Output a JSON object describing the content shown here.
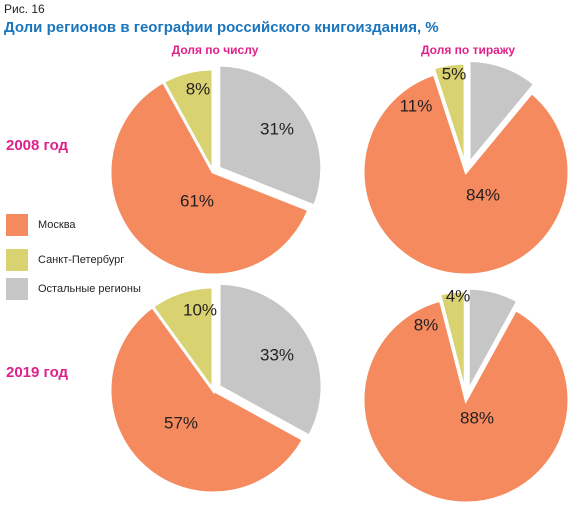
{
  "figure": {
    "label": "Рис. 16",
    "title": "Доли регионов в географии российского книгоиздания, %"
  },
  "columns": [
    "Доля по числу",
    "Доля по тиражу"
  ],
  "rows": [
    "2008 год",
    "2019 год"
  ],
  "legend": [
    {
      "label": "Москва",
      "color": "#f48a5e"
    },
    {
      "label": "Санкт-Петербург",
      "color": "#d9d271"
    },
    {
      "label": "Остальные регионы",
      "color": "#c6c6c7"
    }
  ],
  "chart_data": [
    {
      "type": "pie",
      "title": "Доля по числу",
      "subtitle": "2008 год",
      "categories": [
        "Москва",
        "Санкт-Петербург",
        "Остальные регионы"
      ],
      "values": [
        61,
        8,
        31
      ],
      "labels": [
        "61%",
        "8%",
        "31%"
      ],
      "colors": [
        "#f48a5e",
        "#d9d271",
        "#c6c6c7"
      ]
    },
    {
      "type": "pie",
      "title": "Доля по тиражу",
      "subtitle": "2008 год",
      "categories": [
        "Москва",
        "Санкт-Петербург",
        "Остальные регионы"
      ],
      "values": [
        84,
        5,
        11
      ],
      "labels": [
        "84%",
        "5%",
        "11%"
      ],
      "colors": [
        "#f48a5e",
        "#d9d271",
        "#c6c6c7"
      ]
    },
    {
      "type": "pie",
      "title": "Доля по числу",
      "subtitle": "2019 год",
      "categories": [
        "Москва",
        "Санкт-Петербург",
        "Остальные регионы"
      ],
      "values": [
        57,
        10,
        33
      ],
      "labels": [
        "57%",
        "10%",
        "33%"
      ],
      "colors": [
        "#f48a5e",
        "#d9d271",
        "#c6c6c7"
      ]
    },
    {
      "type": "pie",
      "title": "Доля по тиражу",
      "subtitle": "2019 год",
      "categories": [
        "Москва",
        "Санкт-Петербург",
        "Остальные регионы"
      ],
      "values": [
        88,
        4,
        8
      ],
      "labels": [
        "88%",
        "4%",
        "8%"
      ],
      "colors": [
        "#f48a5e",
        "#d9d271",
        "#c6c6c7"
      ]
    }
  ]
}
